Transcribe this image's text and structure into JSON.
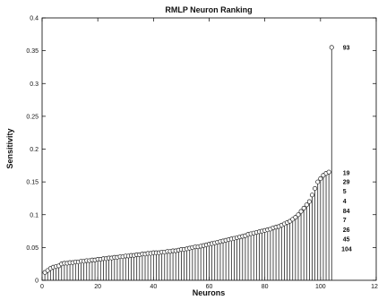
{
  "chart_data": {
    "type": "stem",
    "title": "RMLP Neuron Ranking",
    "xlabel": "Neurons",
    "ylabel": "Sensitivity",
    "xlim": [
      0,
      120
    ],
    "ylim": [
      0,
      0.4
    ],
    "xticks": [
      "0",
      "20",
      "40",
      "60",
      "80",
      "100",
      "120"
    ],
    "yticks": [
      "0",
      "0.05",
      "0.1",
      "0.15",
      "0.2",
      "0.25",
      "0.3",
      "0.35",
      "0.4"
    ],
    "grid": false,
    "marker": "open-circle",
    "x": [
      1,
      2,
      3,
      4,
      5,
      6,
      7,
      8,
      9,
      10,
      11,
      12,
      13,
      14,
      15,
      16,
      17,
      18,
      19,
      20,
      21,
      22,
      23,
      24,
      25,
      26,
      27,
      28,
      29,
      30,
      31,
      32,
      33,
      34,
      35,
      36,
      37,
      38,
      39,
      40,
      41,
      42,
      43,
      44,
      45,
      46,
      47,
      48,
      49,
      50,
      51,
      52,
      53,
      54,
      55,
      56,
      57,
      58,
      59,
      60,
      61,
      62,
      63,
      64,
      65,
      66,
      67,
      68,
      69,
      70,
      71,
      72,
      73,
      74,
      75,
      76,
      77,
      78,
      79,
      80,
      81,
      82,
      83,
      84,
      85,
      86,
      87,
      88,
      89,
      90,
      91,
      92,
      93,
      94,
      95,
      96,
      97,
      98,
      99,
      100,
      101,
      102,
      103,
      104
    ],
    "values": [
      0.012,
      0.015,
      0.018,
      0.02,
      0.021,
      0.022,
      0.025,
      0.026,
      0.026,
      0.027,
      0.027,
      0.028,
      0.028,
      0.029,
      0.029,
      0.03,
      0.03,
      0.031,
      0.031,
      0.032,
      0.032,
      0.033,
      0.033,
      0.034,
      0.034,
      0.035,
      0.035,
      0.036,
      0.036,
      0.037,
      0.037,
      0.038,
      0.038,
      0.039,
      0.039,
      0.04,
      0.04,
      0.041,
      0.041,
      0.042,
      0.042,
      0.042,
      0.043,
      0.043,
      0.044,
      0.044,
      0.045,
      0.045,
      0.046,
      0.047,
      0.047,
      0.048,
      0.049,
      0.05,
      0.051,
      0.051,
      0.052,
      0.053,
      0.054,
      0.055,
      0.056,
      0.057,
      0.058,
      0.059,
      0.06,
      0.061,
      0.062,
      0.063,
      0.064,
      0.065,
      0.066,
      0.067,
      0.068,
      0.07,
      0.071,
      0.072,
      0.073,
      0.074,
      0.075,
      0.076,
      0.077,
      0.078,
      0.08,
      0.081,
      0.082,
      0.084,
      0.086,
      0.088,
      0.09,
      0.093,
      0.096,
      0.1,
      0.105,
      0.11,
      0.115,
      0.12,
      0.13,
      0.14,
      0.15,
      0.155,
      0.16,
      0.163,
      0.165,
      0.355
    ],
    "annotations": [
      {
        "text": "93",
        "x": 108,
        "y": 0.355
      },
      {
        "text": "19",
        "x": 108,
        "y": 0.164
      },
      {
        "text": "29",
        "x": 108,
        "y": 0.15
      },
      {
        "text": "5",
        "x": 108,
        "y": 0.136
      },
      {
        "text": "4",
        "x": 108,
        "y": 0.121
      },
      {
        "text": "84",
        "x": 108,
        "y": 0.106
      },
      {
        "text": "7",
        "x": 108,
        "y": 0.092
      },
      {
        "text": "26",
        "x": 108,
        "y": 0.077
      },
      {
        "text": "45",
        "x": 108,
        "y": 0.063
      },
      {
        "text": "104",
        "x": 107.5,
        "y": 0.048
      }
    ]
  }
}
